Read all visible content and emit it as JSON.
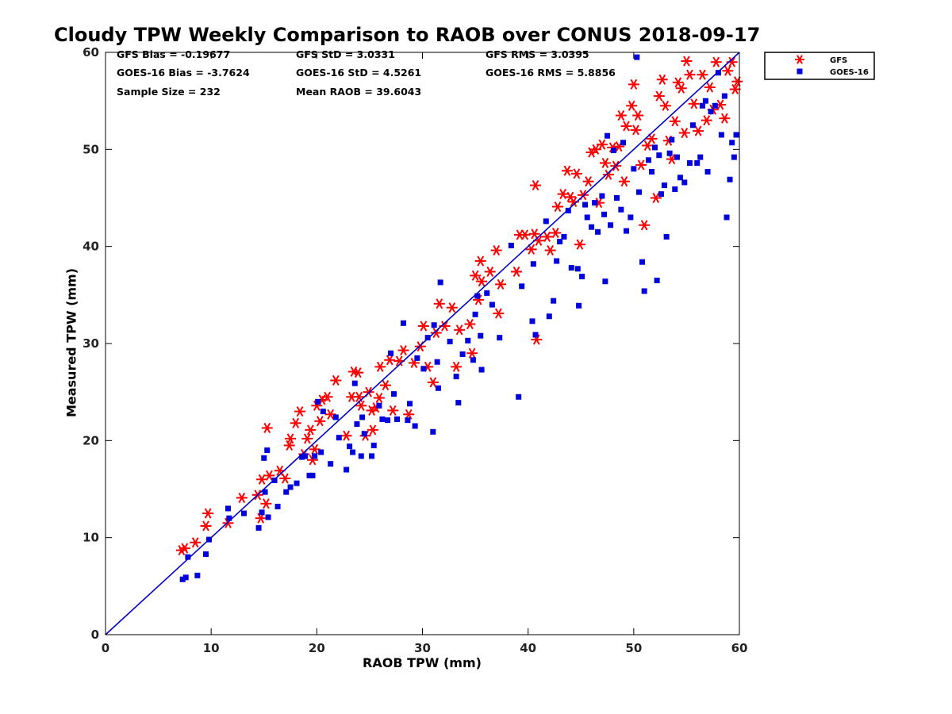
{
  "colors": {
    "gfs": "#ff0000",
    "goes16": "#0000dd",
    "reference_line": "#0000cc",
    "axes": "#000000"
  },
  "stats": {
    "gfs_bias": "GFS Bias = -0.19677",
    "goes_bias": "GOES-16 Bias = -3.7624",
    "sample_size": "Sample Size = 232",
    "gfs_std": "GFS StD = 3.0331",
    "goes_std": "GOES-16 StD = 4.5261",
    "mean_raob": "Mean RAOB = 39.6043",
    "gfs_rms": "GFS RMS = 3.0395",
    "goes_rms": "GOES-16 RMS = 5.8856"
  },
  "chart_data": {
    "type": "scatter",
    "title": "Cloudy TPW Weekly Comparison to RAOB over CONUS 2018-09-17",
    "xlabel": "RAOB TPW (mm)",
    "ylabel": "Measured TPW (mm)",
    "xlim": [
      0,
      60
    ],
    "ylim": [
      0,
      60
    ],
    "xticks": [
      "0",
      "10",
      "20",
      "30",
      "40",
      "50",
      "60"
    ],
    "yticks": [
      "0",
      "10",
      "20",
      "30",
      "40",
      "50",
      "60"
    ],
    "grid": false,
    "legend_position": "outside-top-right",
    "reference_line": {
      "name": "1:1 line",
      "x": [
        0,
        60
      ],
      "y": [
        0,
        60
      ]
    },
    "series": [
      {
        "name": "GFS",
        "marker": "asterisk",
        "points": [
          [
            7.2,
            8.7
          ],
          [
            7.5,
            8.9
          ],
          [
            8.5,
            9.5
          ],
          [
            9.5,
            11.2
          ],
          [
            9.7,
            12.5
          ],
          [
            11.6,
            11.5
          ],
          [
            12.9,
            14.1
          ],
          [
            14.4,
            14.4
          ],
          [
            14.7,
            12
          ],
          [
            14.8,
            16
          ],
          [
            15.2,
            13.5
          ],
          [
            15.3,
            21.3
          ],
          [
            15.5,
            16.4
          ],
          [
            16.5,
            16.9
          ],
          [
            17,
            16.1
          ],
          [
            17.4,
            19.5
          ],
          [
            17.5,
            20.2
          ],
          [
            18,
            21.8
          ],
          [
            18.4,
            23
          ],
          [
            18.8,
            18.6
          ],
          [
            19.1,
            20.2
          ],
          [
            19.4,
            21.1
          ],
          [
            19.6,
            18
          ],
          [
            19.8,
            19.1
          ],
          [
            20,
            23.6
          ],
          [
            20.3,
            22
          ],
          [
            20.5,
            24.2
          ],
          [
            21,
            24.5
          ],
          [
            21.3,
            22.7
          ],
          [
            21.8,
            26.2
          ],
          [
            22.8,
            20.5
          ],
          [
            23.3,
            24.5
          ],
          [
            23.5,
            27.1
          ],
          [
            23.9,
            27
          ],
          [
            24,
            24.5
          ],
          [
            24.2,
            23.6
          ],
          [
            24.6,
            20.5
          ],
          [
            24.9,
            25
          ],
          [
            25.2,
            23.1
          ],
          [
            25.3,
            21.1
          ],
          [
            25.6,
            23.4
          ],
          [
            25.9,
            24.4
          ],
          [
            26,
            27.6
          ],
          [
            26.5,
            25.7
          ],
          [
            26.9,
            28.3
          ],
          [
            27.2,
            23.1
          ],
          [
            27.8,
            28.2
          ],
          [
            28.2,
            29.3
          ],
          [
            28.7,
            22.7
          ],
          [
            29.2,
            28
          ],
          [
            29.8,
            29.7
          ],
          [
            30.1,
            31.8
          ],
          [
            30.5,
            27.6
          ],
          [
            31,
            26
          ],
          [
            31.3,
            31.1
          ],
          [
            31.6,
            34.1
          ],
          [
            32.1,
            31.8
          ],
          [
            32.8,
            33.7
          ],
          [
            33.2,
            27.6
          ],
          [
            33.5,
            31.4
          ],
          [
            34.5,
            32
          ],
          [
            34.7,
            29
          ],
          [
            35,
            37
          ],
          [
            35.3,
            34.5
          ],
          [
            35.5,
            38.5
          ],
          [
            35.6,
            36.4
          ],
          [
            36.4,
            37.4
          ],
          [
            37,
            39.6
          ],
          [
            37.2,
            33.1
          ],
          [
            37.4,
            36.1
          ],
          [
            38.9,
            37.4
          ],
          [
            39.2,
            41.2
          ],
          [
            39.7,
            41.2
          ],
          [
            40.3,
            39.7
          ],
          [
            40.6,
            41.3
          ],
          [
            40.7,
            46.3
          ],
          [
            40.8,
            30.4
          ],
          [
            41,
            40.6
          ],
          [
            41.8,
            41
          ],
          [
            42.1,
            39.6
          ],
          [
            42.6,
            41.4
          ],
          [
            42.8,
            44.1
          ],
          [
            43.3,
            45.4
          ],
          [
            43.7,
            47.8
          ],
          [
            44,
            45.1
          ],
          [
            44.3,
            44.6
          ],
          [
            44.6,
            47.5
          ],
          [
            44.9,
            40.2
          ],
          [
            45.2,
            45.3
          ],
          [
            45.7,
            46.7
          ],
          [
            46,
            49.7
          ],
          [
            46.4,
            50
          ],
          [
            46.7,
            44.5
          ],
          [
            47,
            50.5
          ],
          [
            47.3,
            48.6
          ],
          [
            47.6,
            47.4
          ],
          [
            48,
            50.2
          ],
          [
            48.3,
            48.3
          ],
          [
            48.6,
            50.3
          ],
          [
            48.8,
            53.5
          ],
          [
            49.1,
            46.7
          ],
          [
            49.3,
            52.4
          ],
          [
            49.8,
            54.5
          ],
          [
            50,
            56.7
          ],
          [
            50.2,
            52
          ],
          [
            50.4,
            53.5
          ],
          [
            50.7,
            48.4
          ],
          [
            51,
            42.2
          ],
          [
            51.3,
            50.4
          ],
          [
            51.7,
            51.1
          ],
          [
            52.1,
            45
          ],
          [
            52.4,
            55.5
          ],
          [
            52.7,
            57.2
          ],
          [
            53,
            54.5
          ],
          [
            53.3,
            50.9
          ],
          [
            53.6,
            49
          ],
          [
            53.9,
            52.9
          ],
          [
            54.2,
            56.9
          ],
          [
            54.5,
            56.3
          ],
          [
            54.8,
            51.7
          ],
          [
            55,
            59.1
          ],
          [
            55.3,
            57.7
          ],
          [
            55.7,
            54.7
          ],
          [
            56.1,
            51.9
          ],
          [
            56.5,
            57.7
          ],
          [
            56.9,
            53
          ],
          [
            57.2,
            56.4
          ],
          [
            57.5,
            54.1
          ],
          [
            57.8,
            59
          ],
          [
            58.2,
            54.6
          ],
          [
            58.6,
            53.2
          ],
          [
            58.9,
            58.1
          ],
          [
            59.3,
            59
          ],
          [
            59.6,
            56.2
          ],
          [
            59.8,
            57
          ]
        ]
      },
      {
        "name": "GOES-16",
        "marker": "square",
        "points": [
          [
            7.3,
            5.7
          ],
          [
            7.6,
            5.9
          ],
          [
            7.8,
            8
          ],
          [
            8.7,
            6.1
          ],
          [
            9.5,
            8.3
          ],
          [
            9.8,
            9.8
          ],
          [
            11.6,
            13
          ],
          [
            11.7,
            12
          ],
          [
            13.1,
            12.5
          ],
          [
            14.5,
            11
          ],
          [
            14.8,
            12.6
          ],
          [
            15,
            18.2
          ],
          [
            15.1,
            14.7
          ],
          [
            15.3,
            19
          ],
          [
            15.4,
            12.1
          ],
          [
            16,
            15.9
          ],
          [
            16.3,
            13.2
          ],
          [
            17.1,
            14.7
          ],
          [
            17.5,
            15.2
          ],
          [
            18.1,
            15.6
          ],
          [
            18.6,
            18.3
          ],
          [
            18.9,
            18.4
          ],
          [
            19.3,
            16.4
          ],
          [
            19.6,
            16.4
          ],
          [
            19.8,
            18.4
          ],
          [
            20.1,
            24
          ],
          [
            20.4,
            18.8
          ],
          [
            20.6,
            23
          ],
          [
            21.3,
            17.6
          ],
          [
            21.8,
            22.4
          ],
          [
            22.1,
            20.3
          ],
          [
            22.8,
            17
          ],
          [
            23.1,
            19.4
          ],
          [
            23.4,
            18.8
          ],
          [
            23.6,
            25.9
          ],
          [
            23.8,
            21.7
          ],
          [
            24.2,
            18.4
          ],
          [
            24.3,
            22.4
          ],
          [
            24.5,
            20.7
          ],
          [
            25.2,
            18.4
          ],
          [
            25.4,
            19.5
          ],
          [
            25.9,
            23.6
          ],
          [
            26.2,
            22.2
          ],
          [
            26.7,
            22.1
          ],
          [
            27,
            29
          ],
          [
            27.3,
            24.8
          ],
          [
            27.6,
            22.2
          ],
          [
            28.2,
            32.1
          ],
          [
            28.6,
            22.1
          ],
          [
            28.8,
            23.8
          ],
          [
            29.3,
            21.5
          ],
          [
            29.5,
            28.5
          ],
          [
            30.1,
            27.4
          ],
          [
            30.5,
            30.6
          ],
          [
            31,
            20.9
          ],
          [
            31.1,
            31.9
          ],
          [
            31.4,
            28.1
          ],
          [
            31.5,
            25.4
          ],
          [
            31.7,
            36.3
          ],
          [
            32.6,
            30.2
          ],
          [
            33.2,
            26.6
          ],
          [
            33.4,
            23.9
          ],
          [
            33.8,
            28.9
          ],
          [
            34.3,
            30.3
          ],
          [
            34.8,
            28.3
          ],
          [
            35,
            33
          ],
          [
            35.2,
            34.9
          ],
          [
            35.5,
            30.8
          ],
          [
            35.6,
            27.3
          ],
          [
            36.1,
            35.2
          ],
          [
            36.6,
            34
          ],
          [
            37.3,
            30.6
          ],
          [
            38.4,
            40.1
          ],
          [
            39.1,
            24.5
          ],
          [
            39.4,
            35.9
          ],
          [
            40.4,
            32.3
          ],
          [
            40.5,
            38.2
          ],
          [
            40.7,
            30.9
          ],
          [
            41.7,
            42.6
          ],
          [
            42,
            32.8
          ],
          [
            42.4,
            34.4
          ],
          [
            42.7,
            38.5
          ],
          [
            43,
            40.5
          ],
          [
            43.4,
            41
          ],
          [
            43.8,
            43.7
          ],
          [
            44.1,
            37.8
          ],
          [
            44.7,
            37.7
          ],
          [
            44.8,
            33.9
          ],
          [
            45.1,
            36.9
          ],
          [
            45.4,
            44.3
          ],
          [
            45.6,
            43
          ],
          [
            46,
            42
          ],
          [
            46.3,
            44.5
          ],
          [
            46.6,
            41.5
          ],
          [
            47,
            45.2
          ],
          [
            47.2,
            43.3
          ],
          [
            47.3,
            36.4
          ],
          [
            47.5,
            51.4
          ],
          [
            47.8,
            42.2
          ],
          [
            48.1,
            49.9
          ],
          [
            48.4,
            45
          ],
          [
            48.8,
            43.8
          ],
          [
            49,
            50.7
          ],
          [
            49.3,
            41.6
          ],
          [
            49.7,
            43
          ],
          [
            50,
            48
          ],
          [
            50.3,
            59.5
          ],
          [
            50.5,
            45.6
          ],
          [
            50.8,
            38.4
          ],
          [
            51,
            35.4
          ],
          [
            51.4,
            48.9
          ],
          [
            51.7,
            47.7
          ],
          [
            52,
            50.2
          ],
          [
            52.2,
            36.5
          ],
          [
            52.4,
            49.4
          ],
          [
            52.6,
            45.4
          ],
          [
            52.9,
            46.3
          ],
          [
            53.1,
            41
          ],
          [
            53.4,
            49.6
          ],
          [
            53.6,
            51
          ],
          [
            53.9,
            45.9
          ],
          [
            54.1,
            49.2
          ],
          [
            54.4,
            47.1
          ],
          [
            54.8,
            46.6
          ],
          [
            55.3,
            48.6
          ],
          [
            55.6,
            52.5
          ],
          [
            56,
            48.6
          ],
          [
            56.3,
            49.2
          ],
          [
            56.5,
            54.5
          ],
          [
            56.8,
            55
          ],
          [
            57,
            47.7
          ],
          [
            57.3,
            53.9
          ],
          [
            57.7,
            54.5
          ],
          [
            58,
            57.9
          ],
          [
            58.3,
            51.5
          ],
          [
            58.6,
            55.5
          ],
          [
            58.8,
            43
          ],
          [
            59.1,
            46.9
          ],
          [
            59.3,
            50.7
          ],
          [
            59.5,
            49.2
          ],
          [
            59.7,
            51.5
          ]
        ]
      }
    ]
  }
}
